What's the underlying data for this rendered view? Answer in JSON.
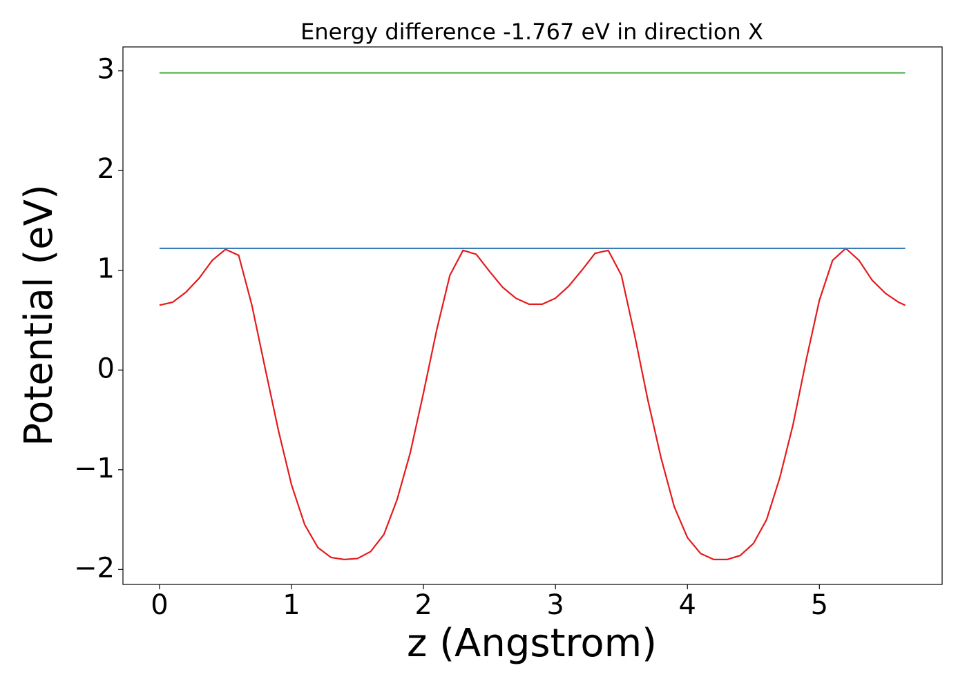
{
  "chart_data": {
    "type": "line",
    "title": "Energy difference -1.767 eV in direction X",
    "x_label": "z (Angstrom)",
    "y_label": "Potential (eV)",
    "xlim": [
      -0.277,
      5.93
    ],
    "ylim": [
      -2.15,
      3.24
    ],
    "xticks": [
      0,
      1,
      2,
      3,
      4,
      5
    ],
    "yticks": [
      {
        "value": -2,
        "label": "−2"
      },
      {
        "value": -1,
        "label": "−1"
      },
      0,
      1,
      2,
      3
    ],
    "grid": false,
    "series": [
      {
        "color": "#e41a1c",
        "x": [
          0,
          0.1,
          0.2,
          0.3,
          0.4,
          0.5,
          0.6,
          0.7,
          0.8,
          0.9,
          1.0,
          1.1,
          1.2,
          1.3,
          1.4,
          1.5,
          1.6,
          1.7,
          1.8,
          1.9,
          2.0,
          2.1,
          2.2,
          2.3,
          2.4,
          2.5,
          2.6,
          2.7,
          2.8,
          2.9,
          3.0,
          3.1,
          3.2,
          3.3,
          3.4,
          3.5,
          3.6,
          3.7,
          3.8,
          3.9,
          4.0,
          4.1,
          4.2,
          4.3,
          4.4,
          4.5,
          4.6,
          4.7,
          4.8,
          4.9,
          5.0,
          5.1,
          5.2,
          5.3,
          5.4,
          5.5,
          5.6,
          5.65
        ],
        "values": [
          0.65,
          0.68,
          0.78,
          0.92,
          1.1,
          1.21,
          1.15,
          0.65,
          0.02,
          -0.6,
          -1.15,
          -1.55,
          -1.78,
          -1.88,
          -1.9,
          -1.89,
          -1.82,
          -1.65,
          -1.3,
          -0.83,
          -0.23,
          0.4,
          0.95,
          1.2,
          1.16,
          0.99,
          0.83,
          0.72,
          0.66,
          0.66,
          0.72,
          0.84,
          1.0,
          1.17,
          1.2,
          0.95,
          0.35,
          -0.3,
          -0.88,
          -1.37,
          -1.68,
          -1.84,
          -1.9,
          -1.9,
          -1.86,
          -1.74,
          -1.5,
          -1.08,
          -0.55,
          0.1,
          0.7,
          1.1,
          1.22,
          1.1,
          0.9,
          0.77,
          0.68,
          0.65
        ]
      },
      {
        "color": "#377eb8",
        "x": [
          0,
          5.65
        ],
        "values": [
          1.22,
          1.22
        ]
      },
      {
        "color": "#4daf4a",
        "x": [
          0,
          5.65
        ],
        "values": [
          2.98,
          2.98
        ]
      }
    ]
  }
}
